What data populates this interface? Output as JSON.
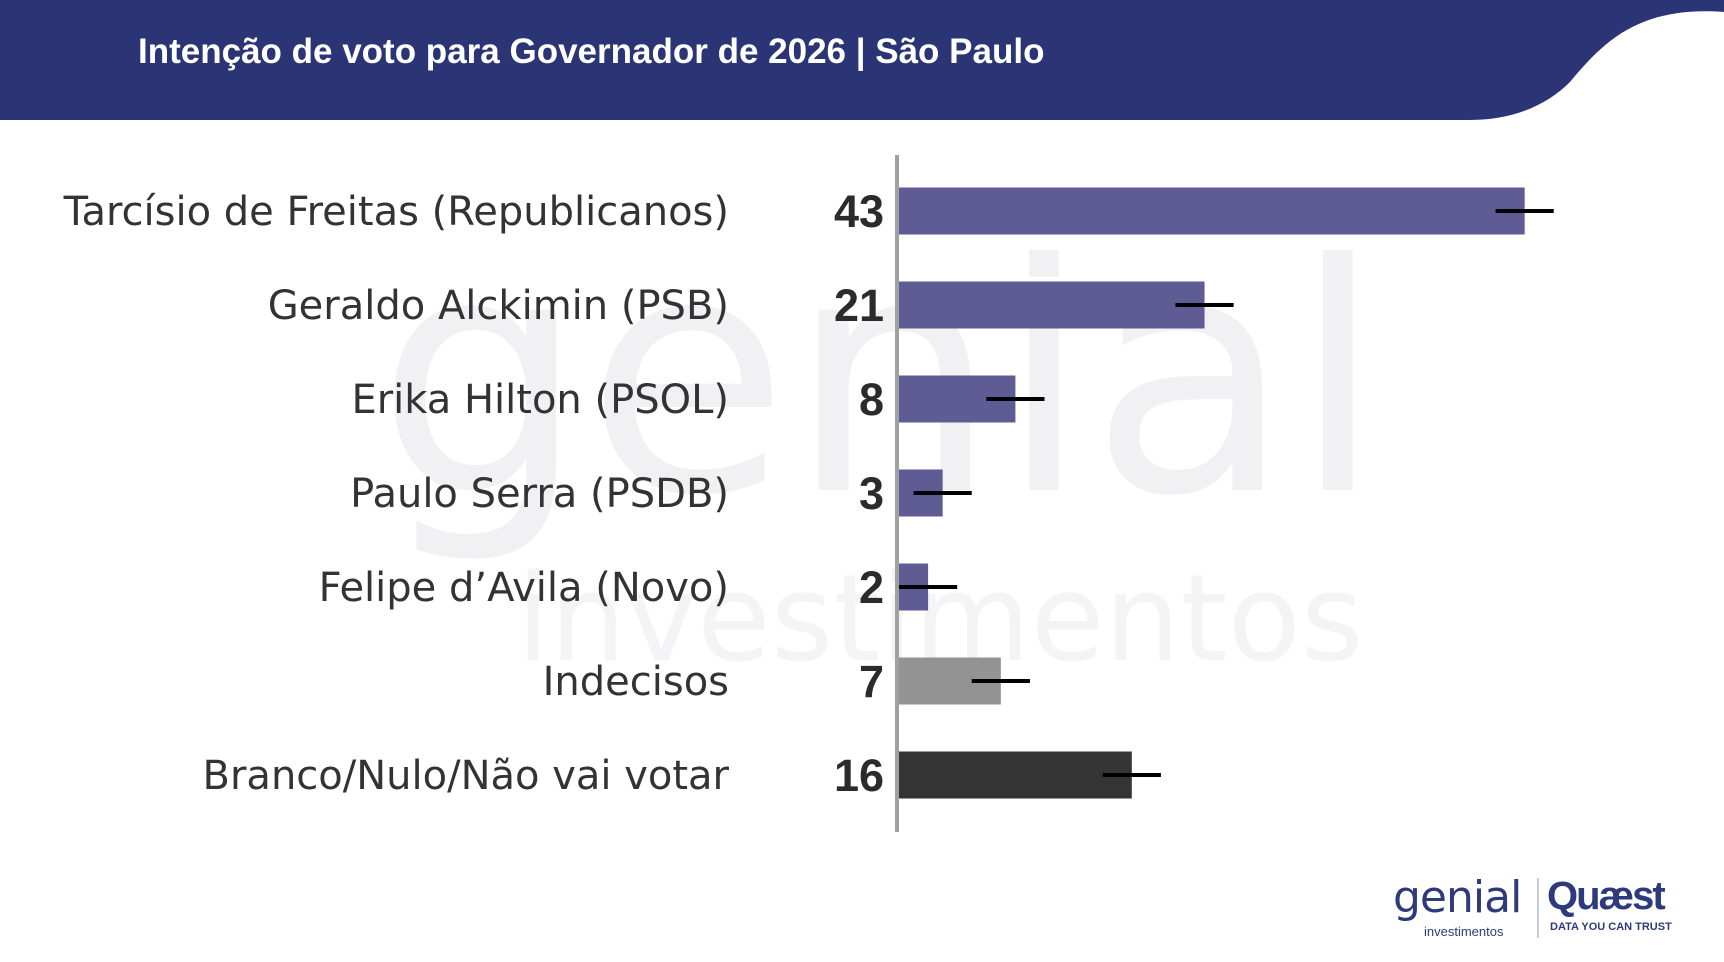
{
  "title": "Intenção de voto para Governador de 2026 | São Paulo",
  "colors": {
    "header": "#2b3576",
    "candidate": "#5f5b95",
    "undecided": "#939393",
    "blank": "#343434",
    "axis": "#a0a0a0",
    "error_bar": "#000000"
  },
  "watermark": {
    "word": "genial",
    "subword": "investimentos"
  },
  "logos": {
    "genial": "genial",
    "genial_sub": "investimentos",
    "quaest": "Quæst",
    "quaest_tagline": "DATA YOU CAN TRUST"
  },
  "chart_data": {
    "type": "bar",
    "orientation": "horizontal",
    "categories": [
      "Tarcísio de Freitas (Republicanos)",
      "Geraldo Alckimin (PSB)",
      "Erika Hilton (PSOL)",
      "Paulo Serra (PSDB)",
      "Felipe d’Avila (Novo)",
      "Indecisos",
      "Branco/Nulo/Não vai votar"
    ],
    "values": [
      43,
      21,
      8,
      3,
      2,
      7,
      16
    ],
    "value_labels": [
      "43",
      "21",
      "8",
      "3",
      "2",
      "7",
      "16"
    ],
    "bar_colors": [
      "#5f5b95",
      "#5f5b95",
      "#5f5b95",
      "#5f5b95",
      "#5f5b95",
      "#939393",
      "#343434"
    ],
    "error_margin": 2,
    "xlim": [
      0,
      50
    ],
    "grid": false,
    "legend": "none",
    "title": "",
    "xlabel": "",
    "ylabel": ""
  }
}
